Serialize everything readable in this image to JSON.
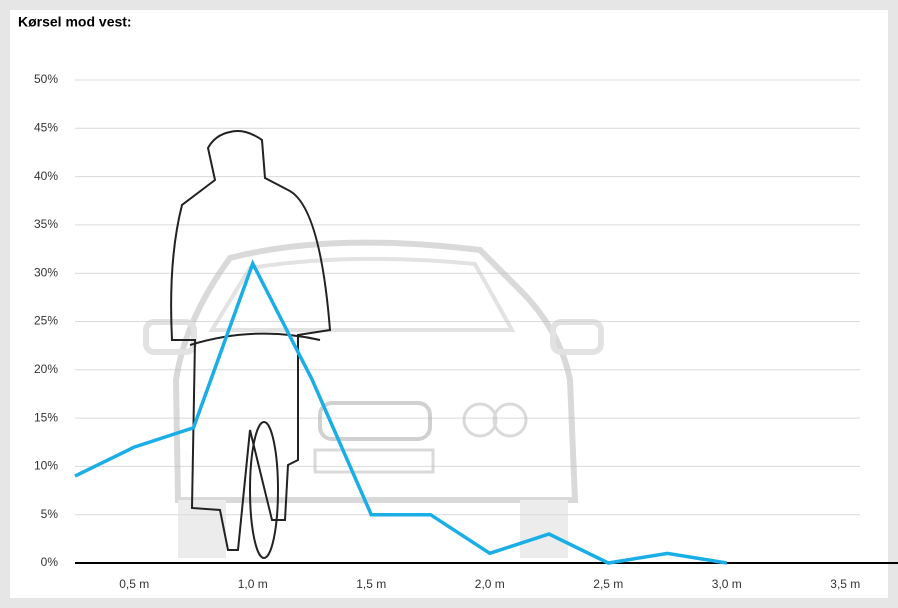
{
  "chart_data": {
    "type": "line",
    "title": "Kørsel mod vest:",
    "x": [
      0.25,
      0.5,
      0.75,
      1.0,
      1.25,
      1.5,
      1.75,
      2.0,
      2.25,
      2.5,
      2.75,
      3.0
    ],
    "series": [
      {
        "color": "#1aaee6",
        "values": [
          9,
          12,
          14,
          31,
          19,
          5,
          5,
          1,
          3,
          0,
          1,
          0
        ]
      }
    ],
    "xlim": [
      0.25,
      3.6
    ],
    "xticks": [
      {
        "value": 0.5,
        "label": "0,5 m"
      },
      {
        "value": 1.0,
        "label": "1,0 m"
      },
      {
        "value": 1.5,
        "label": "1,5 m"
      },
      {
        "value": 2.0,
        "label": "2,0 m"
      },
      {
        "value": 2.5,
        "label": "2,5 m"
      },
      {
        "value": 3.0,
        "label": "3,0 m"
      },
      {
        "value": 3.5,
        "label": "3,5 m"
      }
    ],
    "ylim": [
      0,
      50
    ],
    "yticks": [
      {
        "value": 0,
        "label": "0%"
      },
      {
        "value": 5,
        "label": "5%"
      },
      {
        "value": 10,
        "label": "10%"
      },
      {
        "value": 15,
        "label": "15%"
      },
      {
        "value": 20,
        "label": "20%"
      },
      {
        "value": 25,
        "label": "25%"
      },
      {
        "value": 30,
        "label": "30%"
      },
      {
        "value": 35,
        "label": "35%"
      },
      {
        "value": 40,
        "label": "40%"
      },
      {
        "value": 45,
        "label": "45%"
      },
      {
        "value": 50,
        "label": "50%"
      }
    ],
    "grid": true
  }
}
